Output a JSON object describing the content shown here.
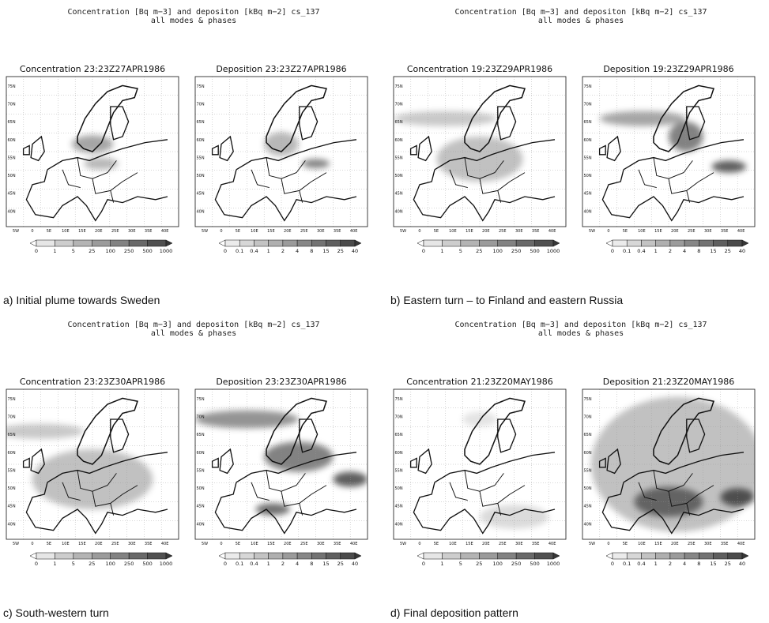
{
  "panels": [
    {
      "header": [
        "Concentration [Bq m−3] and depositon [kBq m−2] cs_137",
        "all modes & phases"
      ],
      "maps": [
        "Concentration 23:23Z27APR1986",
        "Deposition 23:23Z27APR1986"
      ],
      "caption": "a) Initial plume towards Sweden"
    },
    {
      "header": [
        "Concentration [Bq m−3] and depositon [kBq m−2] cs_137",
        "all modes & phases"
      ],
      "maps": [
        "Concentration 19:23Z29APR1986",
        "Deposition 19:23Z29APR1986"
      ],
      "caption": "b) Eastern turn – to Finland and eastern Russia"
    },
    {
      "header": [
        "Concentration [Bq m−3] and depositon [kBq m−2] cs_137",
        "all modes & phases"
      ],
      "maps": [
        "Concentration 23:23Z30APR1986",
        "Deposition 23:23Z30APR1986"
      ],
      "caption": "c) South-western turn"
    },
    {
      "header": [
        "Concentration [Bq m−3] and depositon [kBq m−2] cs_137",
        "all modes & phases"
      ],
      "maps": [
        "Concentration 21:23Z20MAY1986",
        "Deposition 21:23Z20MAY1986"
      ],
      "caption": "d) Final deposition pattern"
    }
  ],
  "lat_labels": [
    "75N",
    "70N",
    "65N",
    "60N",
    "55N",
    "50N",
    "45N",
    "40N"
  ],
  "lon_labels": [
    "5W",
    "0",
    "5E",
    "10E",
    "15E",
    "20E",
    "25E",
    "30E",
    "35E",
    "40E"
  ],
  "colorbar_labels": {
    "concentration": [
      "0",
      "1",
      "5",
      "25",
      "100",
      "250",
      "500",
      "1000"
    ],
    "deposition": [
      "0",
      "0.1",
      "0.4",
      "1",
      "2",
      "4",
      "8",
      "15",
      "25",
      "40"
    ]
  }
}
